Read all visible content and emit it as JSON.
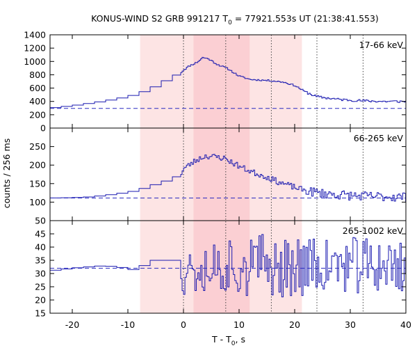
{
  "chart_data": {
    "type": "line",
    "title": "KONUS-WIND S2 GRB 991217 T",
    "title_sub": "0",
    "title_rest": " = 77921.553s UT (21:38:41.553)",
    "xlabel": "T - T",
    "xlabel_sub": "0",
    "xlabel_rest": ", s",
    "ylabel": "counts / 256 ms",
    "xlim": [
      -24,
      40
    ],
    "x_ticks": [
      -20,
      -10,
      0,
      10,
      20,
      30,
      40
    ],
    "colors": {
      "series": "#1a1ab0",
      "background_level": "#2a2ac0",
      "light_shade": "#fde4e4",
      "dark_shade": "#fbcfd3",
      "marker_line": "#444444"
    },
    "shaded_intervals": [
      {
        "from": -7.8,
        "to": 21.3,
        "shade": "light"
      },
      {
        "from": 1.8,
        "to": 11.9,
        "shade": "dark"
      }
    ],
    "vertical_markers": [
      0,
      7.6,
      15.8,
      24.0,
      32.3
    ],
    "panels": [
      {
        "label": "17-66 keV",
        "ylim": [
          0,
          1400
        ],
        "y_ticks": [
          0,
          200,
          400,
          600,
          800,
          1000,
          1200,
          1400
        ],
        "background": 295,
        "seed": 11,
        "noise": 12,
        "profile": [
          [
            -24.0,
            300
          ],
          [
            -22.0,
            315
          ],
          [
            -20.0,
            335
          ],
          [
            -18.0,
            355
          ],
          [
            -16.0,
            380
          ],
          [
            -14.0,
            405
          ],
          [
            -12.0,
            435
          ],
          [
            -10.0,
            470
          ],
          [
            -8.0,
            510
          ],
          [
            -6.0,
            580
          ],
          [
            -4.0,
            660
          ],
          [
            -2.0,
            760
          ],
          [
            -0.5,
            830
          ],
          [
            0.0,
            870
          ],
          [
            1.0,
            930
          ],
          [
            2.5,
            990
          ],
          [
            3.5,
            1060
          ],
          [
            4.5,
            1040
          ],
          [
            6.0,
            960
          ],
          [
            8.0,
            890
          ],
          [
            10.0,
            780
          ],
          [
            12.0,
            730
          ],
          [
            14.0,
            720
          ],
          [
            16.0,
            710
          ],
          [
            18.0,
            690
          ],
          [
            20.0,
            640
          ],
          [
            22.0,
            540
          ],
          [
            24.0,
            470
          ],
          [
            26.0,
            450
          ],
          [
            28.0,
            430
          ],
          [
            30.0,
            420
          ],
          [
            32.0,
            410
          ],
          [
            34.0,
            405
          ],
          [
            36.0,
            400
          ],
          [
            38.0,
            400
          ],
          [
            40.0,
            398
          ]
        ]
      },
      {
        "label": "66-265 keV",
        "ylim": [
          50,
          300
        ],
        "y_ticks": [
          50,
          100,
          150,
          200,
          250
        ],
        "background": 111,
        "seed": 23,
        "noise": 8,
        "profile": [
          [
            -24.0,
            111
          ],
          [
            -20.0,
            112
          ],
          [
            -18.0,
            113
          ],
          [
            -16.0,
            115
          ],
          [
            -14.0,
            118
          ],
          [
            -12.0,
            122
          ],
          [
            -10.0,
            126
          ],
          [
            -8.0,
            132
          ],
          [
            -6.0,
            142
          ],
          [
            -4.0,
            152
          ],
          [
            -2.0,
            162
          ],
          [
            -0.5,
            175
          ],
          [
            0.0,
            190
          ],
          [
            1.0,
            200
          ],
          [
            2.5,
            215
          ],
          [
            4.0,
            225
          ],
          [
            6.0,
            222
          ],
          [
            7.5,
            218
          ],
          [
            9.0,
            205
          ],
          [
            11.0,
            190
          ],
          [
            13.0,
            178
          ],
          [
            15.0,
            168
          ],
          [
            17.0,
            155
          ],
          [
            19.0,
            145
          ],
          [
            21.0,
            135
          ],
          [
            23.0,
            128
          ],
          [
            25.0,
            124
          ],
          [
            27.0,
            121
          ],
          [
            30.0,
            118
          ],
          [
            33.0,
            116
          ],
          [
            36.0,
            115
          ],
          [
            40.0,
            114
          ]
        ]
      },
      {
        "label": "265-1002 keV",
        "ylim": [
          15,
          50
        ],
        "y_ticks": [
          15,
          20,
          25,
          30,
          35,
          40,
          45
        ],
        "background": 32,
        "seed": 37,
        "noise": 0,
        "profile": [
          [
            -24.0,
            31
          ],
          [
            -20.0,
            32
          ],
          [
            -14.0,
            33
          ],
          [
            -10.0,
            32
          ],
          [
            -8.0,
            31
          ],
          [
            -6.0,
            35
          ],
          [
            -0.5,
            35
          ],
          [
            40.0,
            32
          ]
        ]
      }
    ]
  }
}
